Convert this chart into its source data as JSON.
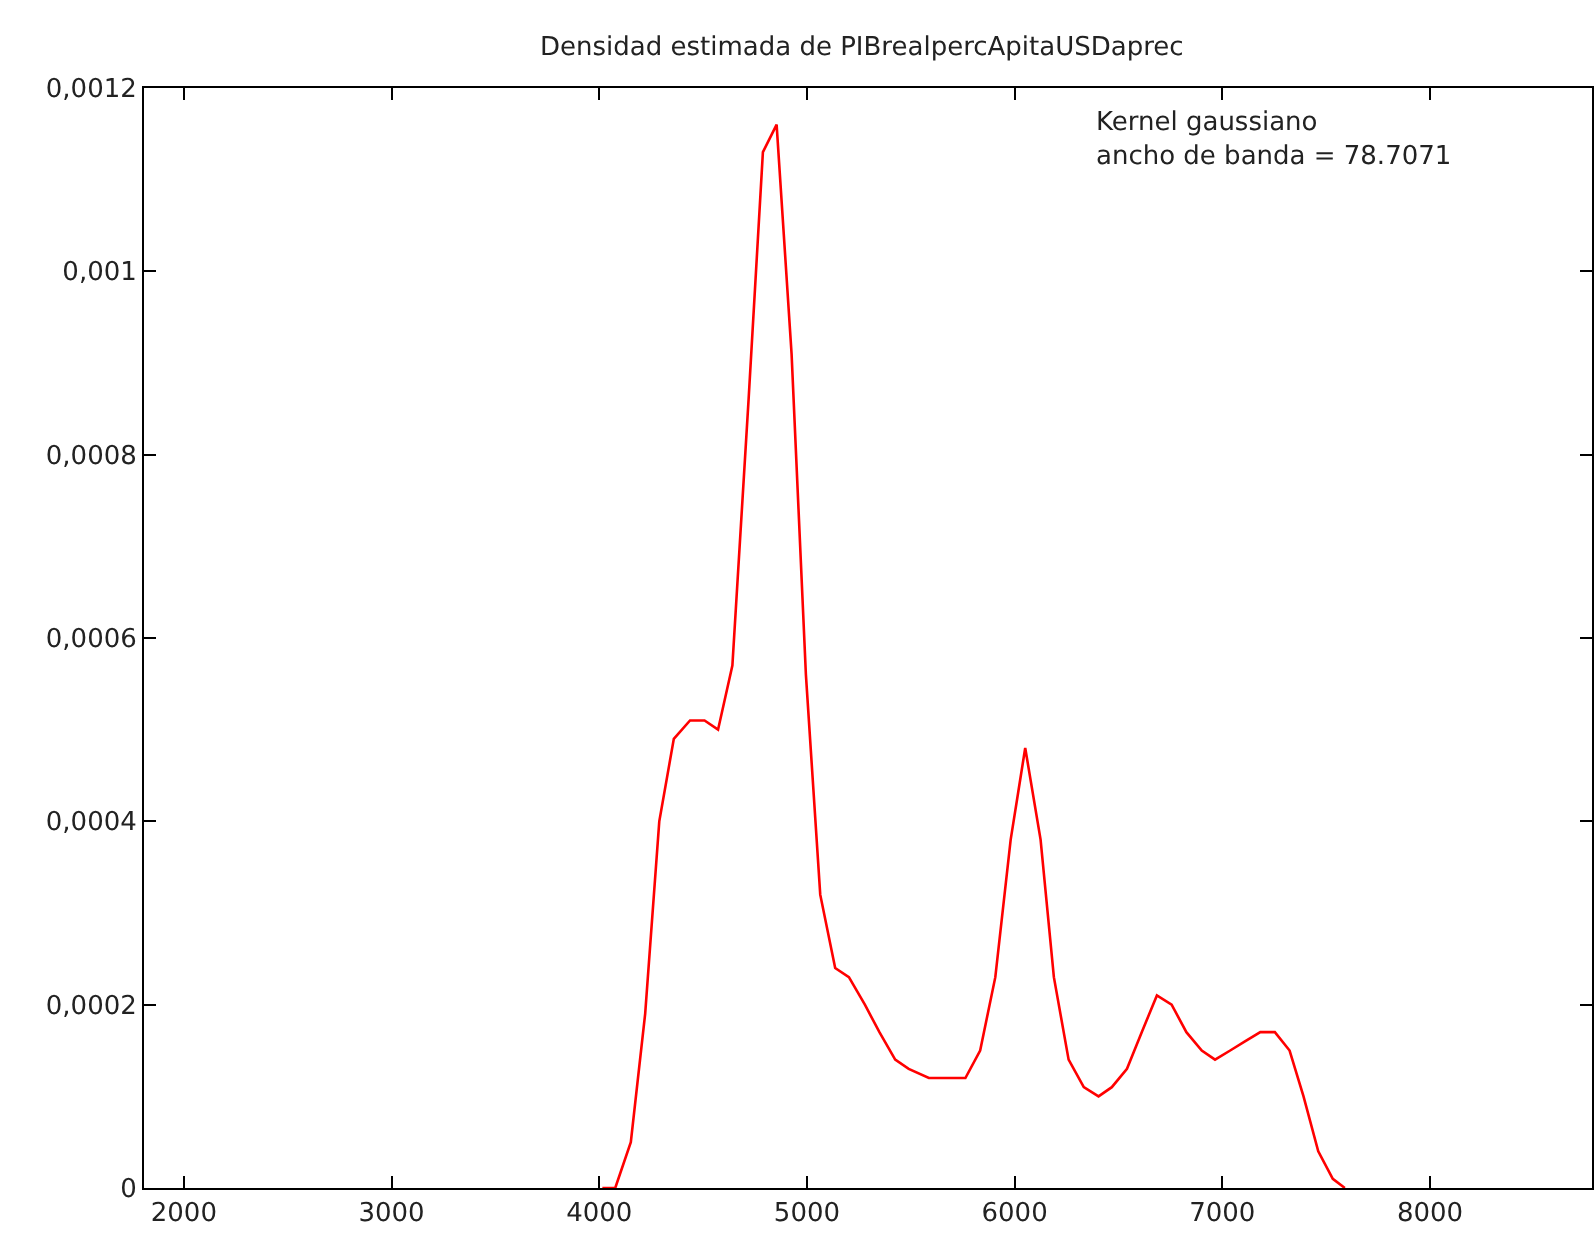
{
  "chart_data": {
    "type": "line",
    "title": "Densidad estimada de PIBrealpercApitaUSDaprec",
    "annotations": [
      "Kernel gaussiano\nancho de banda = 78.7071"
    ],
    "x": [
      4015,
      4077,
      4152,
      4221,
      4289,
      4359,
      4437,
      4507,
      4572,
      4641,
      4719,
      4788,
      4854,
      4926,
      4995,
      5064,
      5136,
      5202,
      5279,
      5349,
      5425,
      5490,
      5587,
      5692,
      5763,
      5834,
      5907,
      5981,
      6051,
      6125,
      6189,
      6260,
      6333,
      6404,
      6468,
      6541,
      6612,
      6685,
      6756,
      6827,
      6901,
      6965,
      7038,
      7109,
      7183,
      7253,
      7324,
      7391,
      7462,
      7532,
      7590
    ],
    "series": [
      {
        "color": "#ff0000",
        "values": [
          0,
          0,
          5e-05,
          0.00019,
          0.0004,
          0.00049,
          0.00051,
          0.00051,
          0.0005,
          0.00057,
          0.00086,
          0.00113,
          0.00116,
          0.00091,
          0.00056,
          0.00032,
          0.00024,
          0.00023,
          0.0002,
          0.00017,
          0.00014,
          0.00013,
          0.00012,
          0.00012,
          0.00012,
          0.00015,
          0.00023,
          0.00038,
          0.00048,
          0.00038,
          0.00023,
          0.00014,
          0.00011,
          0.0001,
          0.00011,
          0.00013,
          0.00017,
          0.00021,
          0.0002,
          0.00017,
          0.00015,
          0.00014,
          0.00015,
          0.00016,
          0.00017,
          0.00017,
          0.00015,
          0.0001,
          4e-05,
          1e-05,
          0
        ]
      }
    ],
    "xlim": [
      1808,
      8780
    ],
    "ylim": [
      0,
      0.0012
    ],
    "xticks": [
      2000,
      3000,
      4000,
      5000,
      6000,
      7000,
      8000
    ],
    "yticks": [
      {
        "value": 0,
        "label": "0"
      },
      {
        "value": 0.0002,
        "label": "0,0002"
      },
      {
        "value": 0.0004,
        "label": "0,0004"
      },
      {
        "value": 0.0006,
        "label": "0,0006"
      },
      {
        "value": 0.0008,
        "label": "0,0008"
      },
      {
        "value": 0.001,
        "label": "0,001"
      },
      {
        "value": 0.0012,
        "label": "0,0012"
      }
    ],
    "marker": "none",
    "line_style": "solid"
  }
}
